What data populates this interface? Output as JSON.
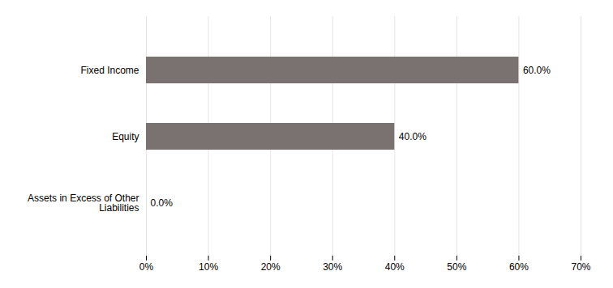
{
  "chart_data": {
    "type": "bar",
    "orientation": "horizontal",
    "categories": [
      "Fixed Income",
      "Equity",
      "Assets in Excess of Other\nLiabilities"
    ],
    "values": [
      60.0,
      40.0,
      0.0
    ],
    "value_labels": [
      "60.0%",
      "40.0%",
      "0.0%"
    ],
    "data_labels": true,
    "color": "#7a7270",
    "xlim": [
      0,
      70
    ],
    "xticks": [
      {
        "value": 0,
        "label": "0%"
      },
      {
        "value": 10,
        "label": "10%"
      },
      {
        "value": 20,
        "label": "20%"
      },
      {
        "value": 30,
        "label": "30%"
      },
      {
        "value": 40,
        "label": "40%"
      },
      {
        "value": 50,
        "label": "50%"
      },
      {
        "value": 60,
        "label": "60%"
      },
      {
        "value": 70,
        "label": "70%"
      }
    ],
    "grid": true
  }
}
